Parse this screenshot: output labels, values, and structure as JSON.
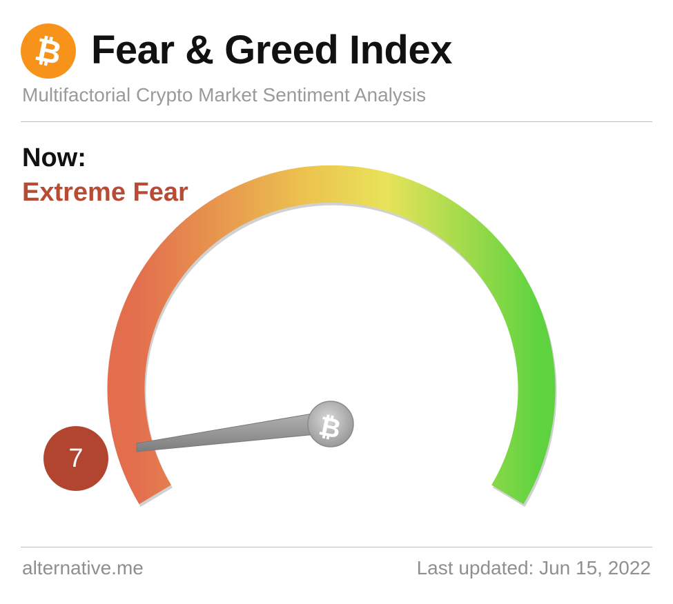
{
  "header": {
    "title": "Fear & Greed Index",
    "subtitle": "Multifactorial Crypto Market Sentiment Analysis",
    "logo_icon": "bitcoin-icon",
    "logo_color": "#f7931a"
  },
  "status": {
    "now_label": "Now:",
    "classification": "Extreme Fear",
    "classification_color": "#b84b34"
  },
  "gauge": {
    "value": "7",
    "min": 0,
    "max": 100,
    "badge_color": "#b24530",
    "gradient_colors": [
      "#e36e4e",
      "#ecc34f",
      "#e8e35a",
      "#5fd33f"
    ],
    "hub_icon": "bitcoin-icon"
  },
  "footer": {
    "source": "alternative.me",
    "last_updated": "Last updated: Jun 15, 2022"
  }
}
